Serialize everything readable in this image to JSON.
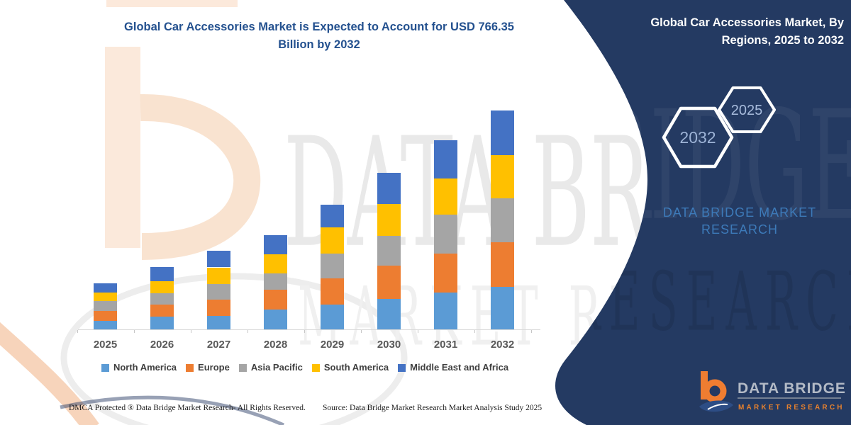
{
  "title": {
    "line1": "Global Car Accessories Market is Expected to Account for USD 766.35",
    "line2": "Billion by 2032"
  },
  "panel": {
    "bg_color": "#243a62",
    "title_line1": "Global Car Accessories Market, By",
    "title_line2": "Regions, 2025 to 2032",
    "hex_left": "2032",
    "hex_right": "2025",
    "brand_line1": "DATA BRIDGE MARKET",
    "brand_line2": "RESEARCH"
  },
  "watermark": {
    "line1": "DATA BRIDGE",
    "line2": "MARKET RESEARCH"
  },
  "chart_data": {
    "type": "bar",
    "stacked": true,
    "title": "Global Car Accessories Market, By Regions, 2025 to 2032",
    "categories": [
      "2025",
      "2026",
      "2027",
      "2028",
      "2029",
      "2030",
      "2031",
      "2032"
    ],
    "series": [
      {
        "name": "North America",
        "color": "#5B9BD5",
        "values": [
          30,
          45,
          47,
          69,
          88,
          106,
          128,
          149
        ]
      },
      {
        "name": "Europe",
        "color": "#ED7D31",
        "values": [
          35,
          43,
          56,
          69,
          91,
          116,
          138,
          157
        ]
      },
      {
        "name": "Asia Pacific",
        "color": "#A5A5A5",
        "values": [
          33,
          38,
          56,
          57,
          87,
          105,
          136,
          154
        ]
      },
      {
        "name": "South America",
        "color": "#FFC000",
        "values": [
          31,
          43,
          58,
          68,
          91,
          111,
          126,
          151
        ]
      },
      {
        "name": "Middle East and Africa",
        "color": "#4472C4",
        "values": [
          32,
          50,
          58,
          67,
          80,
          111,
          135,
          155.35
        ]
      }
    ],
    "totals": [
      161,
      219,
      275,
      330,
      437,
      549,
      663,
      766.35
    ],
    "units": "USD Billion",
    "value_note": "segment values estimated from bar pixel heights; 2032 total labeled as USD 766.35 Billion",
    "xlabel": "",
    "ylabel": "",
    "y_axis_shown": false,
    "ylim": [
      0,
      800
    ],
    "grid": false,
    "legend_position": "bottom"
  },
  "footer": {
    "left": "DMCA Protected ® Data Bridge Market Research-  All Rights Reserved.",
    "right": "Source: Data Bridge Market Research  Market Analysis Study 2025"
  },
  "corner_logo": {
    "brand": "DATA BRIDGE",
    "sub": "MARKET RESEARCH"
  }
}
